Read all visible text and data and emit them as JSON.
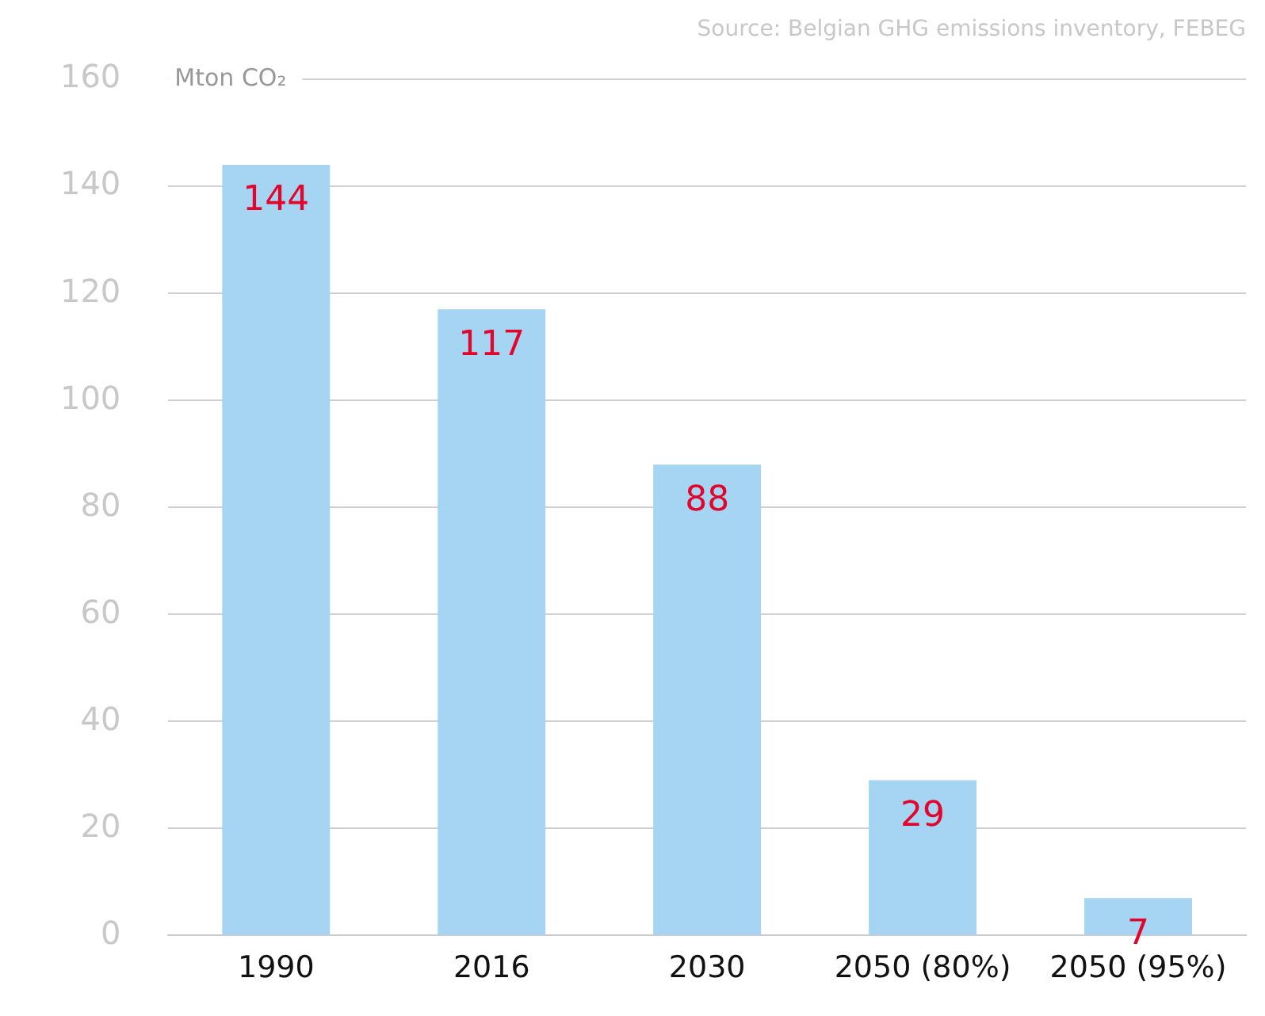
{
  "chart_data": {
    "type": "bar",
    "ylabel": "Mton CO₂",
    "annotations": [
      "Source: Belgian GHG emissions inventory, FEBEG"
    ],
    "categories": [
      "1990",
      "2016",
      "2030",
      "2050 (80%)",
      "2050 (95%)"
    ],
    "values": [
      144,
      117,
      88,
      29,
      7
    ],
    "color": "#a5d5f2",
    "data_labels": true,
    "ylim": [
      0,
      160
    ],
    "yticks": [
      0,
      20,
      40,
      60,
      80,
      100,
      120,
      140,
      160
    ],
    "grid": "y",
    "legend": false
  }
}
